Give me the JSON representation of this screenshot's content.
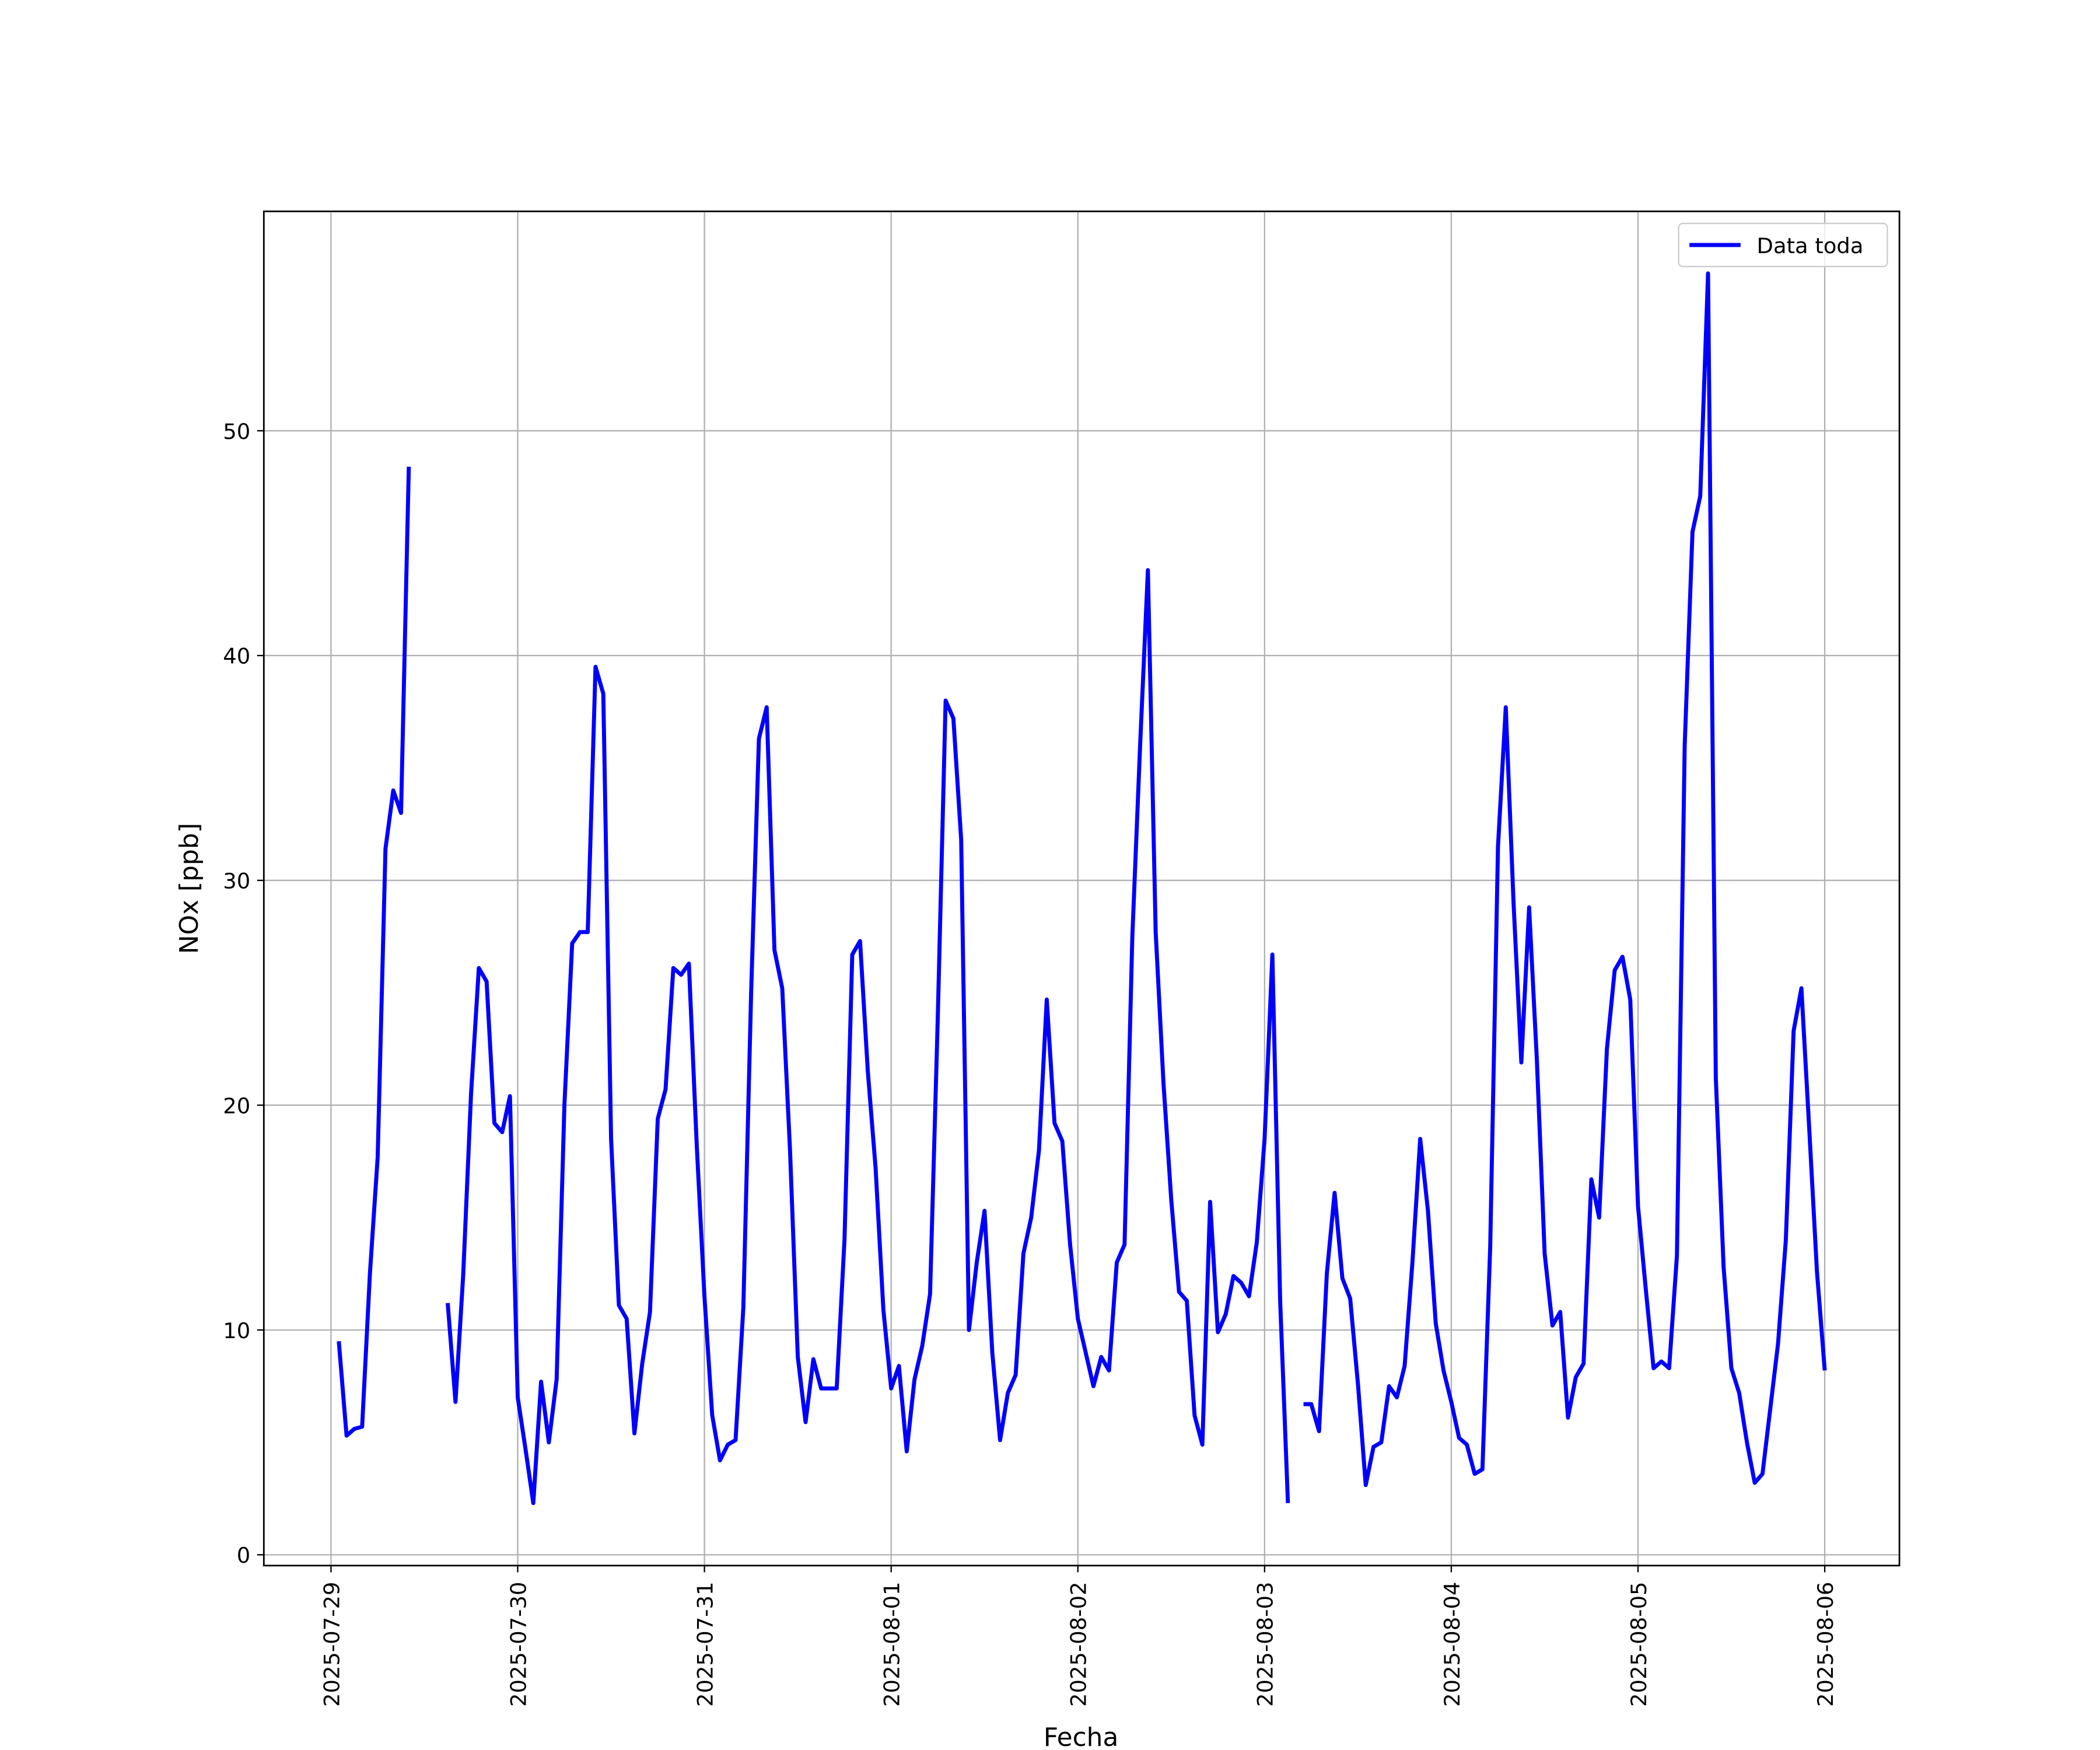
{
  "chart_data": {
    "type": "line",
    "xlabel": "Fecha",
    "ylabel": "NOx [ppb]",
    "x": [
      "2025-07-29 01:00",
      "2025-07-29 02:00",
      "2025-07-29 03:00",
      "2025-07-29 04:00",
      "2025-07-29 05:00",
      "2025-07-29 06:00",
      "2025-07-29 07:00",
      "2025-07-29 08:00",
      "2025-07-29 09:00",
      "2025-07-29 10:00",
      "2025-07-29 11:00",
      "2025-07-29 12:00",
      "2025-07-29 13:00",
      "2025-07-29 14:00",
      "2025-07-29 15:00",
      "2025-07-29 16:00",
      "2025-07-29 17:00",
      "2025-07-29 18:00",
      "2025-07-29 19:00",
      "2025-07-29 20:00",
      "2025-07-29 21:00",
      "2025-07-29 22:00",
      "2025-07-29 23:00",
      "2025-07-30 00:00",
      "2025-07-30 01:00",
      "2025-07-30 02:00",
      "2025-07-30 03:00",
      "2025-07-30 04:00",
      "2025-07-30 05:00",
      "2025-07-30 06:00",
      "2025-07-30 07:00",
      "2025-07-30 08:00",
      "2025-07-30 09:00",
      "2025-07-30 10:00",
      "2025-07-30 11:00",
      "2025-07-30 12:00",
      "2025-07-30 13:00",
      "2025-07-30 14:00",
      "2025-07-30 15:00",
      "2025-07-30 16:00",
      "2025-07-30 17:00",
      "2025-07-30 18:00",
      "2025-07-30 19:00",
      "2025-07-30 20:00",
      "2025-07-30 21:00",
      "2025-07-30 22:00",
      "2025-07-30 23:00",
      "2025-07-31 00:00",
      "2025-07-31 01:00",
      "2025-07-31 02:00",
      "2025-07-31 03:00",
      "2025-07-31 04:00",
      "2025-07-31 05:00",
      "2025-07-31 06:00",
      "2025-07-31 07:00",
      "2025-07-31 08:00",
      "2025-07-31 09:00",
      "2025-07-31 10:00",
      "2025-07-31 11:00",
      "2025-07-31 12:00",
      "2025-07-31 13:00",
      "2025-07-31 14:00",
      "2025-07-31 15:00",
      "2025-07-31 16:00",
      "2025-07-31 17:00",
      "2025-07-31 18:00",
      "2025-07-31 19:00",
      "2025-07-31 20:00",
      "2025-07-31 21:00",
      "2025-07-31 22:00",
      "2025-07-31 23:00",
      "2025-08-01 00:00",
      "2025-08-01 01:00",
      "2025-08-01 02:00",
      "2025-08-01 03:00",
      "2025-08-01 04:00",
      "2025-08-01 05:00",
      "2025-08-01 06:00",
      "2025-08-01 07:00",
      "2025-08-01 08:00",
      "2025-08-01 09:00",
      "2025-08-01 10:00",
      "2025-08-01 11:00",
      "2025-08-01 12:00",
      "2025-08-01 13:00",
      "2025-08-01 14:00",
      "2025-08-01 15:00",
      "2025-08-01 16:00",
      "2025-08-01 17:00",
      "2025-08-01 18:00",
      "2025-08-01 19:00",
      "2025-08-01 20:00",
      "2025-08-01 21:00",
      "2025-08-01 22:00",
      "2025-08-01 23:00",
      "2025-08-02 00:00",
      "2025-08-02 01:00",
      "2025-08-02 02:00",
      "2025-08-02 03:00",
      "2025-08-02 04:00",
      "2025-08-02 05:00",
      "2025-08-02 06:00",
      "2025-08-02 07:00",
      "2025-08-02 08:00",
      "2025-08-02 09:00",
      "2025-08-02 10:00",
      "2025-08-02 11:00",
      "2025-08-02 12:00",
      "2025-08-02 13:00",
      "2025-08-02 14:00",
      "2025-08-02 15:00",
      "2025-08-02 16:00",
      "2025-08-02 17:00",
      "2025-08-02 18:00",
      "2025-08-02 19:00",
      "2025-08-02 20:00",
      "2025-08-02 21:00",
      "2025-08-02 22:00",
      "2025-08-02 23:00",
      "2025-08-03 00:00",
      "2025-08-03 01:00",
      "2025-08-03 02:00",
      "2025-08-03 03:00",
      "2025-08-03 04:00",
      "2025-08-03 05:00",
      "2025-08-03 06:00",
      "2025-08-03 07:00",
      "2025-08-03 08:00",
      "2025-08-03 09:00",
      "2025-08-03 10:00",
      "2025-08-03 11:00",
      "2025-08-03 12:00",
      "2025-08-03 13:00",
      "2025-08-03 14:00",
      "2025-08-03 15:00",
      "2025-08-03 16:00",
      "2025-08-03 17:00",
      "2025-08-03 18:00",
      "2025-08-03 19:00",
      "2025-08-03 20:00",
      "2025-08-03 21:00",
      "2025-08-03 22:00",
      "2025-08-03 23:00",
      "2025-08-04 00:00",
      "2025-08-04 01:00",
      "2025-08-04 02:00",
      "2025-08-04 03:00",
      "2025-08-04 04:00",
      "2025-08-04 05:00",
      "2025-08-04 06:00",
      "2025-08-04 07:00",
      "2025-08-04 08:00",
      "2025-08-04 09:00",
      "2025-08-04 10:00",
      "2025-08-04 11:00",
      "2025-08-04 12:00",
      "2025-08-04 13:00",
      "2025-08-04 14:00",
      "2025-08-04 15:00",
      "2025-08-04 16:00",
      "2025-08-04 17:00",
      "2025-08-04 18:00",
      "2025-08-04 19:00",
      "2025-08-04 20:00",
      "2025-08-04 21:00",
      "2025-08-04 22:00",
      "2025-08-04 23:00",
      "2025-08-05 00:00",
      "2025-08-05 01:00",
      "2025-08-05 02:00",
      "2025-08-05 03:00",
      "2025-08-05 04:00",
      "2025-08-05 05:00",
      "2025-08-05 06:00",
      "2025-08-05 07:00",
      "2025-08-05 08:00",
      "2025-08-05 09:00",
      "2025-08-05 10:00",
      "2025-08-05 11:00",
      "2025-08-05 12:00",
      "2025-08-05 13:00",
      "2025-08-05 14:00",
      "2025-08-05 15:00",
      "2025-08-05 16:00",
      "2025-08-05 17:00",
      "2025-08-05 18:00",
      "2025-08-05 19:00",
      "2025-08-05 20:00",
      "2025-08-05 21:00",
      "2025-08-05 22:00",
      "2025-08-05 23:00",
      "2025-08-06 00:00"
    ],
    "series": [
      {
        "name": "Data toda",
        "color": "#0000ff",
        "values": [
          9.5,
          5.3,
          5.6,
          5.7,
          12.5,
          17.7,
          31.4,
          34.0,
          33.0,
          48.4,
          null,
          null,
          null,
          null,
          11.2,
          6.8,
          12.5,
          20.5,
          26.1,
          25.5,
          19.2,
          18.8,
          20.4,
          7.0,
          4.7,
          2.3,
          7.7,
          5.0,
          7.8,
          20.0,
          27.2,
          27.7,
          27.7,
          39.5,
          38.3,
          18.5,
          11.1,
          10.5,
          5.4,
          8.5,
          10.8,
          19.4,
          20.7,
          26.1,
          25.8,
          26.3,
          18.3,
          11.5,
          6.2,
          4.2,
          4.9,
          5.1,
          11.0,
          25.0,
          36.3,
          37.7,
          26.9,
          25.2,
          18.0,
          8.8,
          5.9,
          8.7,
          7.4,
          7.4,
          7.4,
          14.0,
          26.7,
          27.3,
          21.5,
          17.2,
          10.9,
          7.4,
          8.4,
          4.6,
          7.8,
          9.3,
          11.6,
          24.0,
          38.0,
          37.2,
          31.8,
          10.0,
          13.0,
          15.3,
          9.0,
          5.1,
          7.2,
          8.0,
          13.4,
          15.0,
          18.0,
          24.7,
          19.2,
          18.4,
          13.8,
          10.5,
          9.0,
          7.5,
          8.8,
          8.2,
          13.0,
          13.8,
          27.5,
          36.0,
          43.8,
          27.7,
          21.0,
          15.8,
          11.7,
          11.3,
          6.2,
          4.9,
          15.7,
          9.9,
          10.7,
          12.4,
          12.1,
          11.5,
          13.9,
          18.5,
          26.7,
          11.3,
          2.3,
          null,
          6.7,
          6.7,
          5.5,
          12.5,
          16.1,
          12.3,
          11.4,
          7.6,
          3.1,
          4.8,
          5.0,
          7.5,
          7.0,
          8.4,
          13.0,
          18.5,
          15.3,
          10.3,
          8.2,
          6.8,
          5.2,
          4.9,
          3.6,
          3.8,
          13.7,
          31.5,
          37.7,
          29.0,
          21.9,
          28.8,
          22.0,
          13.4,
          10.2,
          10.8,
          6.1,
          7.9,
          8.5,
          16.7,
          15.0,
          22.5,
          26.0,
          26.6,
          24.7,
          15.5,
          11.8,
          8.3,
          8.6,
          8.3,
          13.3,
          36.0,
          45.5,
          47.1,
          57.0,
          21.2,
          12.8,
          8.3,
          7.2,
          5.0,
          3.2,
          3.6,
          6.5,
          9.4,
          14.0,
          23.3,
          25.2,
          19.0,
          12.6,
          8.2
        ]
      }
    ],
    "xlim": [
      "2025-07-28 15:22",
      "2025-08-06 09:36"
    ],
    "xticks": [
      "2025-07-29",
      "2025-07-30",
      "2025-07-31",
      "2025-08-01",
      "2025-08-02",
      "2025-08-03",
      "2025-08-04",
      "2025-08-05",
      "2025-08-06"
    ],
    "ylim": [
      -0.48,
      59.76
    ],
    "yticks": [
      0,
      10,
      20,
      30,
      40,
      50
    ],
    "grid": true,
    "legend": "upper right"
  }
}
